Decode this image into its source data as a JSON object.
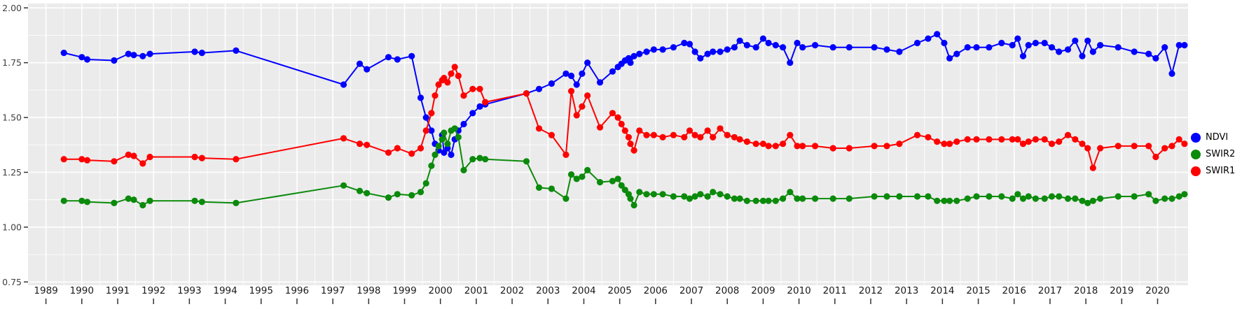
{
  "figure": {
    "background": "#FFFFFF",
    "panel_background": "#EBEBEB",
    "grid_color": "#FFFFFF",
    "tick_color": "#333333",
    "x_axis_text_color": "#1A1A1A",
    "y_axis_text_color": "#404040"
  },
  "chart_data": {
    "type": "line",
    "title": "",
    "xlabel": "",
    "ylabel": "",
    "grid": true,
    "legend_position": "right",
    "xlim": [
      1988.5,
      2020.85
    ],
    "ylim": [
      0.735,
      2.02
    ],
    "x_ticks": [
      1989,
      1990,
      1991,
      1992,
      1993,
      1994,
      1995,
      1996,
      1997,
      1998,
      1999,
      2000,
      2001,
      2002,
      2003,
      2004,
      2005,
      2006,
      2007,
      2008,
      2009,
      2010,
      2011,
      2012,
      2013,
      2014,
      2015,
      2016,
      2017,
      2018,
      2019,
      2020
    ],
    "y_ticks": [
      {
        "label": "0.75",
        "value": 0.75
      },
      {
        "label": "1.00",
        "value": 1.0
      },
      {
        "label": "1.25",
        "value": 1.25
      },
      {
        "label": "1.50",
        "value": 1.5
      },
      {
        "label": "1.75",
        "value": 1.75
      },
      {
        "label": "2.00",
        "value": 2.0
      }
    ],
    "x": [
      1989.5,
      1990.0,
      1990.15,
      1990.9,
      1991.3,
      1991.45,
      1991.7,
      1991.9,
      1993.15,
      1993.35,
      1994.3,
      1997.3,
      1997.75,
      1997.95,
      1998.55,
      1998.8,
      1999.2,
      1999.45,
      1999.6,
      1999.75,
      1999.85,
      1999.95,
      2000.05,
      2000.1,
      2000.2,
      2000.3,
      2000.4,
      2000.5,
      2000.65,
      2000.9,
      2001.1,
      2001.25,
      2002.4,
      2002.75,
      2003.1,
      2003.5,
      2003.65,
      2003.8,
      2003.95,
      2004.1,
      2004.45,
      2004.8,
      2004.95,
      2005.05,
      2005.15,
      2005.25,
      2005.3,
      2005.4,
      2005.55,
      2005.75,
      2005.95,
      2006.2,
      2006.5,
      2006.8,
      2006.95,
      2007.1,
      2007.25,
      2007.45,
      2007.6,
      2007.8,
      2008.0,
      2008.2,
      2008.35,
      2008.55,
      2008.8,
      2009.0,
      2009.15,
      2009.35,
      2009.55,
      2009.75,
      2009.95,
      2010.1,
      2010.45,
      2010.95,
      2011.4,
      2012.1,
      2012.45,
      2012.8,
      2013.3,
      2013.6,
      2013.85,
      2014.05,
      2014.2,
      2014.4,
      2014.7,
      2014.95,
      2015.3,
      2015.65,
      2015.95,
      2016.1,
      2016.25,
      2016.4,
      2016.6,
      2016.85,
      2017.05,
      2017.25,
      2017.5,
      2017.7,
      2017.9,
      2018.05,
      2018.2,
      2018.4,
      2018.9,
      2019.35,
      2019.75,
      2019.95,
      2020.2,
      2020.4,
      2020.6,
      2020.75
    ],
    "series": [
      {
        "name": "NDVI",
        "color": "#0000FF",
        "values": [
          1.795,
          1.775,
          1.765,
          1.76,
          1.79,
          1.785,
          1.78,
          1.79,
          1.8,
          1.795,
          1.805,
          1.65,
          1.745,
          1.72,
          1.775,
          1.765,
          1.78,
          1.59,
          1.5,
          1.44,
          1.38,
          1.35,
          1.42,
          1.34,
          1.36,
          1.33,
          1.4,
          1.44,
          1.47,
          1.52,
          1.55,
          1.56,
          1.61,
          1.63,
          1.655,
          1.7,
          1.69,
          1.65,
          1.7,
          1.75,
          1.66,
          1.71,
          1.73,
          1.745,
          1.76,
          1.77,
          1.75,
          1.78,
          1.79,
          1.8,
          1.81,
          1.81,
          1.82,
          1.84,
          1.835,
          1.8,
          1.77,
          1.79,
          1.8,
          1.8,
          1.81,
          1.82,
          1.85,
          1.83,
          1.82,
          1.86,
          1.84,
          1.83,
          1.82,
          1.75,
          1.84,
          1.82,
          1.83,
          1.82,
          1.82,
          1.82,
          1.81,
          1.8,
          1.84,
          1.86,
          1.88,
          1.84,
          1.77,
          1.79,
          1.82,
          1.82,
          1.82,
          1.84,
          1.83,
          1.86,
          1.78,
          1.83,
          1.84,
          1.84,
          1.82,
          1.8,
          1.81,
          1.85,
          1.78,
          1.85,
          1.8,
          1.83,
          1.82,
          1.8,
          1.79,
          1.77,
          1.82,
          1.7,
          1.83,
          1.83
        ]
      },
      {
        "name": "SWIR2",
        "color": "#0B8A0B",
        "values": [
          1.12,
          1.12,
          1.115,
          1.11,
          1.13,
          1.125,
          1.1,
          1.12,
          1.12,
          1.115,
          1.11,
          1.19,
          1.165,
          1.155,
          1.135,
          1.15,
          1.145,
          1.16,
          1.2,
          1.28,
          1.33,
          1.37,
          1.4,
          1.43,
          1.38,
          1.44,
          1.45,
          1.41,
          1.26,
          1.31,
          1.315,
          1.31,
          1.3,
          1.18,
          1.175,
          1.13,
          1.24,
          1.22,
          1.23,
          1.26,
          1.205,
          1.21,
          1.22,
          1.19,
          1.17,
          1.15,
          1.13,
          1.1,
          1.16,
          1.15,
          1.15,
          1.15,
          1.14,
          1.14,
          1.13,
          1.14,
          1.15,
          1.14,
          1.16,
          1.15,
          1.14,
          1.13,
          1.13,
          1.12,
          1.12,
          1.12,
          1.12,
          1.12,
          1.13,
          1.16,
          1.13,
          1.13,
          1.13,
          1.13,
          1.13,
          1.14,
          1.14,
          1.14,
          1.14,
          1.14,
          1.12,
          1.12,
          1.12,
          1.12,
          1.13,
          1.14,
          1.14,
          1.14,
          1.13,
          1.15,
          1.13,
          1.14,
          1.13,
          1.13,
          1.14,
          1.14,
          1.13,
          1.13,
          1.12,
          1.11,
          1.12,
          1.13,
          1.14,
          1.14,
          1.15,
          1.12,
          1.13,
          1.13,
          1.14,
          1.15
        ]
      },
      {
        "name": "SWIR1",
        "color": "#FF0000",
        "values": [
          1.31,
          1.31,
          1.305,
          1.3,
          1.33,
          1.325,
          1.29,
          1.32,
          1.32,
          1.315,
          1.31,
          1.405,
          1.38,
          1.375,
          1.34,
          1.36,
          1.335,
          1.36,
          1.44,
          1.52,
          1.6,
          1.65,
          1.67,
          1.68,
          1.66,
          1.7,
          1.73,
          1.69,
          1.6,
          1.63,
          1.63,
          1.57,
          1.61,
          1.45,
          1.42,
          1.33,
          1.62,
          1.51,
          1.55,
          1.6,
          1.455,
          1.52,
          1.5,
          1.47,
          1.44,
          1.41,
          1.38,
          1.35,
          1.44,
          1.42,
          1.42,
          1.41,
          1.42,
          1.41,
          1.44,
          1.42,
          1.41,
          1.44,
          1.41,
          1.45,
          1.42,
          1.41,
          1.4,
          1.39,
          1.38,
          1.38,
          1.37,
          1.37,
          1.38,
          1.42,
          1.37,
          1.37,
          1.37,
          1.36,
          1.36,
          1.37,
          1.37,
          1.38,
          1.42,
          1.41,
          1.39,
          1.38,
          1.38,
          1.39,
          1.4,
          1.4,
          1.4,
          1.4,
          1.4,
          1.4,
          1.38,
          1.39,
          1.4,
          1.4,
          1.38,
          1.39,
          1.42,
          1.4,
          1.38,
          1.36,
          1.27,
          1.36,
          1.37,
          1.37,
          1.37,
          1.32,
          1.36,
          1.37,
          1.4,
          1.38
        ]
      }
    ],
    "legend": [
      "NDVI",
      "SWIR2",
      "SWIR1"
    ]
  }
}
